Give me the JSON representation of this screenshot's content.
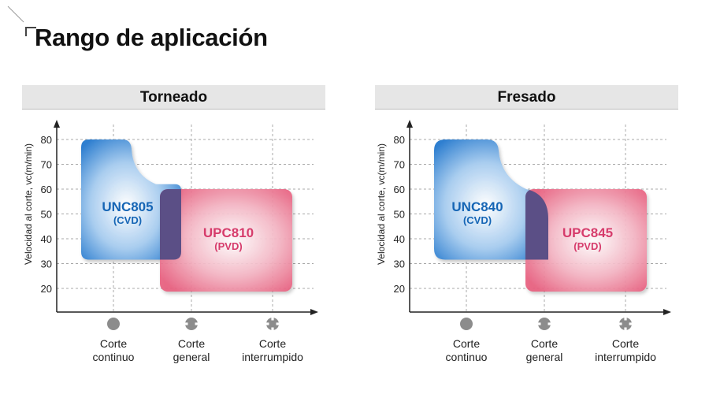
{
  "page": {
    "title": "Rango de aplicación"
  },
  "chart_data": [
    {
      "type": "area",
      "title": "Torneado",
      "ylabel": "Velocidad al corte, vc(m/min)",
      "y_ticks": [
        20,
        30,
        40,
        50,
        60,
        70,
        80
      ],
      "categories": [
        {
          "line1": "Corte",
          "line2": "continuo",
          "icon": "solid-circle-icon"
        },
        {
          "line1": "Corte",
          "line2": "general",
          "icon": "notched-circle-icon"
        },
        {
          "line1": "Corte",
          "line2": "interrumpido",
          "icon": "cross-circle-icon"
        }
      ],
      "regions": [
        {
          "name": "UNC805",
          "sub": "(CVD)",
          "color": "#2f7fd0",
          "label_color": "#1565b5",
          "x_range": [
            "Corte continuo",
            "Corte general"
          ],
          "y_range": [
            30,
            80
          ]
        },
        {
          "name": "UPC810",
          "sub": "(PVD)",
          "color": "#e8607f",
          "label_color": "#d63b6b",
          "x_range": [
            "Corte general",
            "Corte interrumpido"
          ],
          "y_range": [
            20,
            60
          ]
        }
      ]
    },
    {
      "type": "area",
      "title": "Fresado",
      "ylabel": "Velocidad al corte, vc(m/min)",
      "y_ticks": [
        20,
        30,
        40,
        50,
        60,
        70,
        80
      ],
      "categories": [
        {
          "line1": "Corte",
          "line2": "continuo",
          "icon": "solid-circle-icon"
        },
        {
          "line1": "Corte",
          "line2": "general",
          "icon": "notched-circle-icon"
        },
        {
          "line1": "Corte",
          "line2": "interrumpido",
          "icon": "cross-circle-icon"
        }
      ],
      "regions": [
        {
          "name": "UNC840",
          "sub": "(CVD)",
          "color": "#2f7fd0",
          "label_color": "#1565b5",
          "x_range": [
            "Corte continuo",
            "Corte general"
          ],
          "y_range": [
            30,
            80
          ]
        },
        {
          "name": "UPC845",
          "sub": "(PVD)",
          "color": "#e8607f",
          "label_color": "#d63b6b",
          "x_range": [
            "Corte general",
            "Corte interrumpido"
          ],
          "y_range": [
            20,
            60
          ]
        }
      ]
    }
  ]
}
